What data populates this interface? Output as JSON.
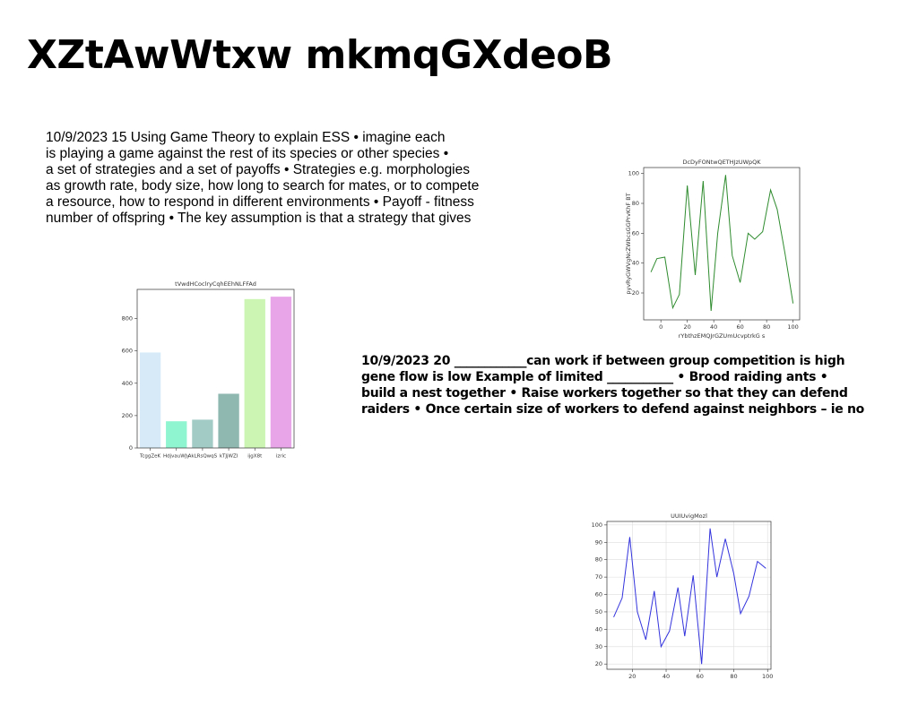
{
  "title": "XZtAwWtxw mkmqGXdeoB",
  "paragraph_1": [
    "10/9/2023 15 Using Game Theory to explain ESS • imagine each",
    "is playing a game against the rest of its species or other species •",
    "a set of strategies and a set of payoffs • Strategies e.g. morphologies",
    "as growth rate, body size, how long to search for mates, or to compete",
    "a resource, how to respond in different environments • Payoff - fitness",
    "number of offspring • The key assumption is that a strategy that gives"
  ],
  "paragraph_2": [
    "10/9/2023 20 ____________can work if between group competition is high",
    "gene flow is low Example of limited ___________ • Brood raiding ants •",
    "build a nest together • Raise workers together so that they can defend",
    "raiders • Once certain size of workers to defend against neighbors – ie no"
  ],
  "chart_data": [
    {
      "type": "bar",
      "title": "tVwdHCoclryCqhEEhNLFFAd",
      "categories": [
        "TcggZeK",
        "HdjvauWJy",
        "AkLRsQwqS",
        "kTJjWZI",
        "ijgX8t",
        "izric"
      ],
      "values": [
        590,
        165,
        175,
        335,
        920,
        935
      ],
      "colors": [
        "#d6eaf8",
        "#8ef5d0",
        "#a3cbc5",
        "#8fb8b0",
        "#ccf5b4",
        "#e8a6e8"
      ],
      "ylim": [
        0,
        980
      ],
      "yticks": [
        0,
        200,
        400,
        600,
        800
      ],
      "grid": false
    },
    {
      "type": "line",
      "title": "DcDyFONtwQETHJzUWpQK",
      "x_label": "rYbthzEMQJrGZUmUcvptrkG s",
      "y_label": "pyvRyGWVgNcZWbcsGGPrvKhF BT",
      "x": [
        -7.5,
        -3,
        3,
        9,
        14,
        20,
        26,
        32,
        38,
        43,
        49,
        54,
        60,
        66,
        71,
        77,
        83,
        88,
        94,
        100
      ],
      "values": [
        34,
        43,
        44,
        10,
        19,
        92,
        32,
        95,
        8,
        60,
        99,
        45,
        27,
        60,
        56,
        61,
        89,
        76,
        46,
        13
      ],
      "color": "#2e8b2e",
      "xlim": [
        -13,
        105
      ],
      "xticks": [
        0,
        20,
        40,
        60,
        80,
        100
      ],
      "ylim": [
        2,
        104
      ],
      "yticks": [
        20,
        40,
        60,
        80,
        100
      ],
      "grid": false
    },
    {
      "type": "line",
      "title": "UUIUvigMozl",
      "x": [
        9,
        14,
        18.5,
        23,
        28,
        33,
        37,
        42,
        47,
        51,
        56,
        61,
        66,
        70,
        75,
        80,
        84,
        89,
        94,
        99
      ],
      "values": [
        47,
        58,
        93,
        50,
        34,
        62,
        30,
        39,
        64,
        36,
        71,
        20,
        98,
        70,
        92,
        72,
        49,
        59,
        79,
        75
      ],
      "color": "#3333dd",
      "xlim": [
        5,
        102
      ],
      "xticks": [
        20,
        40,
        60,
        80,
        100
      ],
      "ylim": [
        17,
        102
      ],
      "yticks": [
        20,
        30,
        40,
        50,
        60,
        70,
        80,
        90,
        100
      ],
      "grid": true
    }
  ]
}
